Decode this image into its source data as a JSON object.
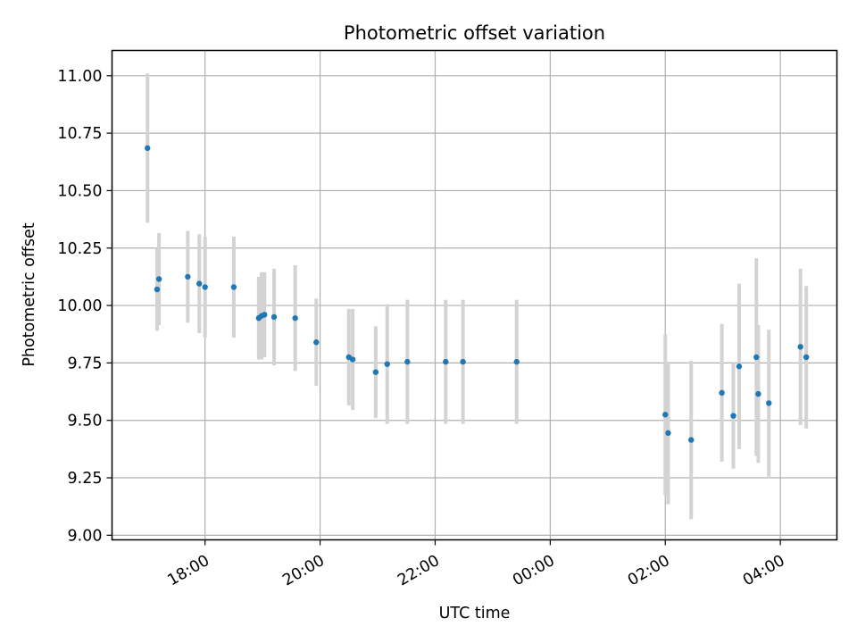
{
  "chart_data": {
    "type": "scatter",
    "title": "Photometric offset variation",
    "xlabel": "UTC time",
    "ylabel": "Photometric offset",
    "x_axis_type": "time",
    "x_start": "17:00",
    "x_range": [
      "16:23",
      "04:59"
    ],
    "x_ticks": [
      "18:00",
      "20:00",
      "22:00",
      "00:00",
      "02:00",
      "04:00"
    ],
    "ylim": [
      8.98,
      11.11
    ],
    "y_ticks": [
      "9.00",
      "9.25",
      "9.50",
      "9.75",
      "10.00",
      "10.25",
      "10.50",
      "10.75",
      "11.00"
    ],
    "grid": true,
    "colors": {
      "marker": "#1f77b4",
      "errorbar": "#d3d3d3",
      "grid": "#b0b0b0"
    },
    "points": [
      {
        "t": "17:00",
        "y": 10.685,
        "err": 0.325
      },
      {
        "t": "17:10",
        "y": 10.07,
        "err": 0.18
      },
      {
        "t": "17:12",
        "y": 10.115,
        "err": 0.2
      },
      {
        "t": "17:42",
        "y": 10.125,
        "err": 0.2
      },
      {
        "t": "17:54",
        "y": 10.095,
        "err": 0.215
      },
      {
        "t": "18:00",
        "y": 10.08,
        "err": 0.22
      },
      {
        "t": "18:30",
        "y": 10.08,
        "err": 0.22
      },
      {
        "t": "18:56",
        "y": 9.945,
        "err": 0.18
      },
      {
        "t": "18:59",
        "y": 9.955,
        "err": 0.19
      },
      {
        "t": "19:02",
        "y": 9.96,
        "err": 0.185
      },
      {
        "t": "19:12",
        "y": 9.95,
        "err": 0.21
      },
      {
        "t": "19:34",
        "y": 9.945,
        "err": 0.23
      },
      {
        "t": "19:56",
        "y": 9.84,
        "err": 0.19
      },
      {
        "t": "20:30",
        "y": 9.775,
        "err": 0.21
      },
      {
        "t": "20:34",
        "y": 9.765,
        "err": 0.22
      },
      {
        "t": "20:58",
        "y": 9.71,
        "err": 0.2
      },
      {
        "t": "21:10",
        "y": 9.745,
        "err": 0.26
      },
      {
        "t": "21:31",
        "y": 9.755,
        "err": 0.27
      },
      {
        "t": "22:11",
        "y": 9.755,
        "err": 0.27
      },
      {
        "t": "22:29",
        "y": 9.755,
        "err": 0.27
      },
      {
        "t": "23:25",
        "y": 9.755,
        "err": 0.27
      },
      {
        "t": "02:00",
        "y": 9.525,
        "err": 0.35
      },
      {
        "t": "02:03",
        "y": 9.445,
        "err": 0.31
      },
      {
        "t": "02:27",
        "y": 9.415,
        "err": 0.345
      },
      {
        "t": "02:59",
        "y": 9.62,
        "err": 0.3
      },
      {
        "t": "03:11",
        "y": 9.52,
        "err": 0.23
      },
      {
        "t": "03:17",
        "y": 9.735,
        "err": 0.36
      },
      {
        "t": "03:35",
        "y": 9.775,
        "err": 0.43
      },
      {
        "t": "03:37",
        "y": 9.615,
        "err": 0.3
      },
      {
        "t": "03:48",
        "y": 9.575,
        "err": 0.32
      },
      {
        "t": "04:21",
        "y": 9.82,
        "err": 0.34
      },
      {
        "t": "04:27",
        "y": 9.775,
        "err": 0.31
      }
    ]
  }
}
